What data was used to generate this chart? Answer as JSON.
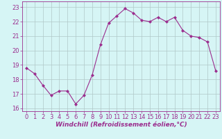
{
  "x": [
    0,
    1,
    2,
    3,
    4,
    5,
    6,
    7,
    8,
    9,
    10,
    11,
    12,
    13,
    14,
    15,
    16,
    17,
    18,
    19,
    20,
    21,
    22,
    23
  ],
  "y": [
    18.8,
    18.4,
    17.6,
    16.9,
    17.2,
    17.2,
    16.3,
    16.9,
    18.3,
    20.4,
    21.9,
    22.4,
    22.9,
    22.6,
    22.1,
    22.0,
    22.3,
    22.0,
    22.3,
    21.4,
    21.0,
    20.9,
    20.6,
    18.6
  ],
  "line_color": "#9b2d8e",
  "marker": "D",
  "marker_size": 2.0,
  "bg_color": "#d6f5f5",
  "grid_color": "#b0c8c8",
  "xlabel": "Windchill (Refroidissement éolien,°C)",
  "xlim": [
    -0.5,
    23.5
  ],
  "ylim": [
    15.8,
    23.4
  ],
  "yticks": [
    16,
    17,
    18,
    19,
    20,
    21,
    22,
    23
  ],
  "xticks": [
    0,
    1,
    2,
    3,
    4,
    5,
    6,
    7,
    8,
    9,
    10,
    11,
    12,
    13,
    14,
    15,
    16,
    17,
    18,
    19,
    20,
    21,
    22,
    23
  ],
  "tick_color": "#9b2d8e",
  "label_fontsize": 6.5,
  "tick_fontsize": 6.0
}
